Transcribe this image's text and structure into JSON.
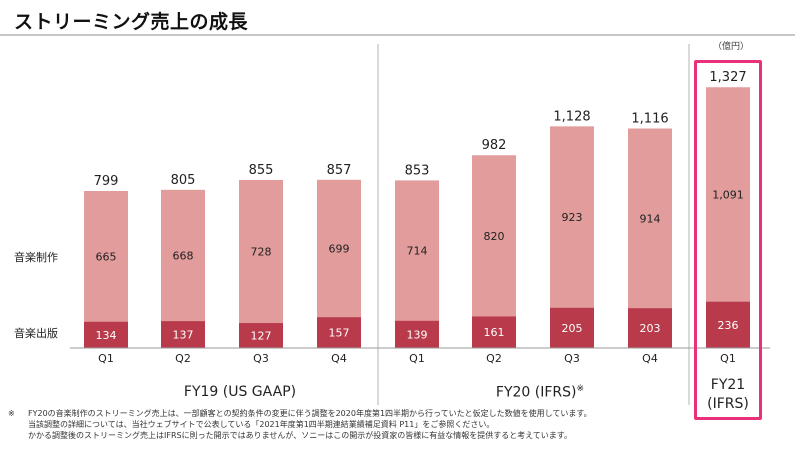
{
  "page": {
    "title": "ストリーミング売上の成長",
    "unit": "（億円）",
    "notes": {
      "mark": "※",
      "lines": [
        "FY20の音楽制作のストリーミング売上は、一部顧客との契約条件の変更に伴う調整を2020年度第1四半期から行っていたと仮定した数値を使用しています。",
        "当該調整の詳細については、当社ウェブサイトで公表している「2021年度第1四半期連結業績補足資料 P11」をご参照ください。",
        "かかる調整後のストリーミング売上はIFRSに則った開示ではありませんが、ソニーはこの開示が投資家の皆様に有益な情報を提供すると考えています。"
      ]
    },
    "colors": {
      "production": "#e29c9c",
      "publishing": "#b83a4b",
      "highlight": "#e8317a"
    }
  },
  "chart_data": {
    "type": "bar",
    "stacked": true,
    "title": "ストリーミング売上の成長",
    "unit": "（億円）",
    "categories": [
      "Q1",
      "Q2",
      "Q3",
      "Q4",
      "Q1",
      "Q2",
      "Q3",
      "Q4",
      "Q1"
    ],
    "groups": [
      {
        "label": "FY19 (US GAAP)",
        "note_mark": "",
        "range": [
          0,
          3
        ]
      },
      {
        "label": "FY20 (IFRS)",
        "note_mark": "※",
        "range": [
          4,
          7
        ]
      },
      {
        "label_lines": [
          "FY21",
          "(IFRS)"
        ],
        "note_mark": "",
        "range": [
          8,
          8
        ]
      }
    ],
    "series": [
      {
        "name": "音楽出版",
        "values": [
          134,
          137,
          127,
          157,
          139,
          161,
          205,
          203,
          236
        ]
      },
      {
        "name": "音楽制作",
        "values": [
          665,
          668,
          728,
          699,
          714,
          820,
          923,
          914,
          1091
        ]
      }
    ],
    "totals": [
      "799",
      "805",
      "855",
      "857",
      "853",
      "982",
      "1,128",
      "1,116",
      "1,327"
    ],
    "segment_labels": {
      "publishing": [
        "134",
        "137",
        "127",
        "157",
        "139",
        "161",
        "205",
        "203",
        "236"
      ],
      "production": [
        "665",
        "668",
        "728",
        "699",
        "714",
        "820",
        "923",
        "914",
        "1,091"
      ]
    },
    "ylim": [
      0,
      1400
    ],
    "grid": false,
    "legend": "left"
  }
}
